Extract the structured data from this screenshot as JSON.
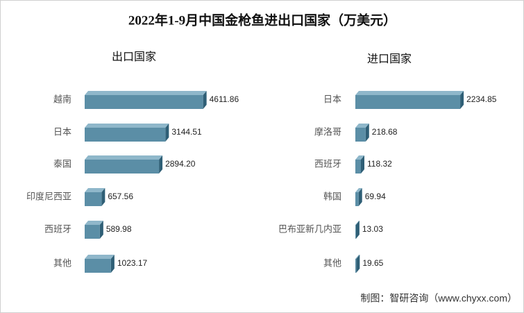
{
  "title": "2022年1-9月中国金枪鱼进出口国家（万美元）",
  "source": "制图：智研咨询（www.chyxx.com）",
  "chart_data": [
    {
      "type": "bar",
      "title": "出口国家",
      "orientation": "horizontal",
      "color": "#5b8ea6",
      "categories": [
        "越南",
        "日本",
        "泰国",
        "印度尼西亚",
        "西班牙",
        "其他"
      ],
      "values": [
        4611.86,
        3144.51,
        2894.2,
        657.56,
        589.98,
        1023.17
      ],
      "value_labels": [
        "4611.86",
        "3144.51",
        "2894.20",
        "657.56",
        "589.98",
        "1023.17"
      ],
      "xlim": [
        0,
        5000
      ]
    },
    {
      "type": "bar",
      "title": "进口国家",
      "orientation": "horizontal",
      "color": "#5b8ea6",
      "categories": [
        "日本",
        "摩洛哥",
        "西班牙",
        "韩国",
        "巴布亚新几内亚",
        "其他"
      ],
      "values": [
        2234.85,
        218.68,
        118.32,
        69.94,
        13.03,
        19.65
      ],
      "value_labels": [
        "2234.85",
        "218.68",
        "118.32",
        "69.94",
        "13.03",
        "19.65"
      ],
      "xlim": [
        0,
        2500
      ]
    }
  ]
}
